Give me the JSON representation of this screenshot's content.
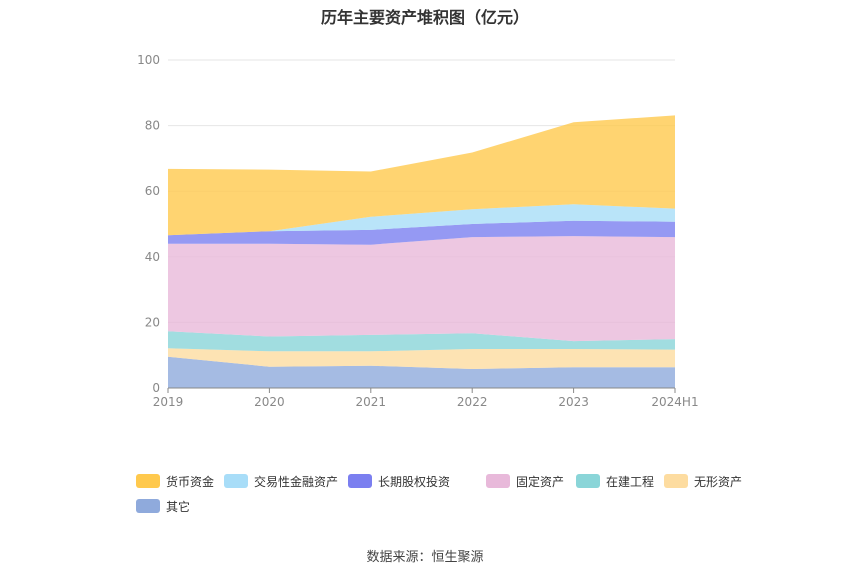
{
  "chart_data": {
    "type": "area",
    "stacked": true,
    "title": "历年主要资产堆积图（亿元）",
    "categories": [
      "2019",
      "2020",
      "2021",
      "2022",
      "2023",
      "2024H1"
    ],
    "ylim": [
      0,
      100
    ],
    "yticks": [
      0,
      20,
      40,
      60,
      80,
      100
    ],
    "grid": true,
    "legend_position": "bottom",
    "series": [
      {
        "name": "其它",
        "color": "#8FAADC",
        "values": [
          9.5,
          6.5,
          6.8,
          5.8,
          6.3,
          6.3
        ]
      },
      {
        "name": "无形资产",
        "color": "#FDDCA0",
        "values": [
          2.6,
          4.7,
          4.4,
          6.1,
          5.6,
          5.4
        ]
      },
      {
        "name": "在建工程",
        "color": "#8AD5D8",
        "values": [
          5.2,
          4.5,
          5.0,
          4.8,
          2.4,
          3.2
        ]
      },
      {
        "name": "固定资产",
        "color": "#E8B9DA",
        "values": [
          26.7,
          28.3,
          27.5,
          29.3,
          32.0,
          31.1
        ]
      },
      {
        "name": "长期股权投资",
        "color": "#7B7FF0",
        "values": [
          2.6,
          3.8,
          4.5,
          4.0,
          4.7,
          4.7
        ]
      },
      {
        "name": "交易性金融资产",
        "color": "#A8DDF8",
        "values": [
          0.0,
          0.0,
          4.0,
          4.5,
          5.0,
          4.0
        ]
      },
      {
        "name": "货币资金",
        "color": "#FFC94D",
        "values": [
          20.2,
          18.8,
          13.8,
          17.3,
          25.0,
          28.4
        ]
      }
    ],
    "legend_order": [
      "货币资金",
      "交易性金融资产",
      "长期股权投资",
      "固定资产",
      "在建工程",
      "无形资产",
      "其它"
    ]
  },
  "source": "数据来源：恒生聚源"
}
